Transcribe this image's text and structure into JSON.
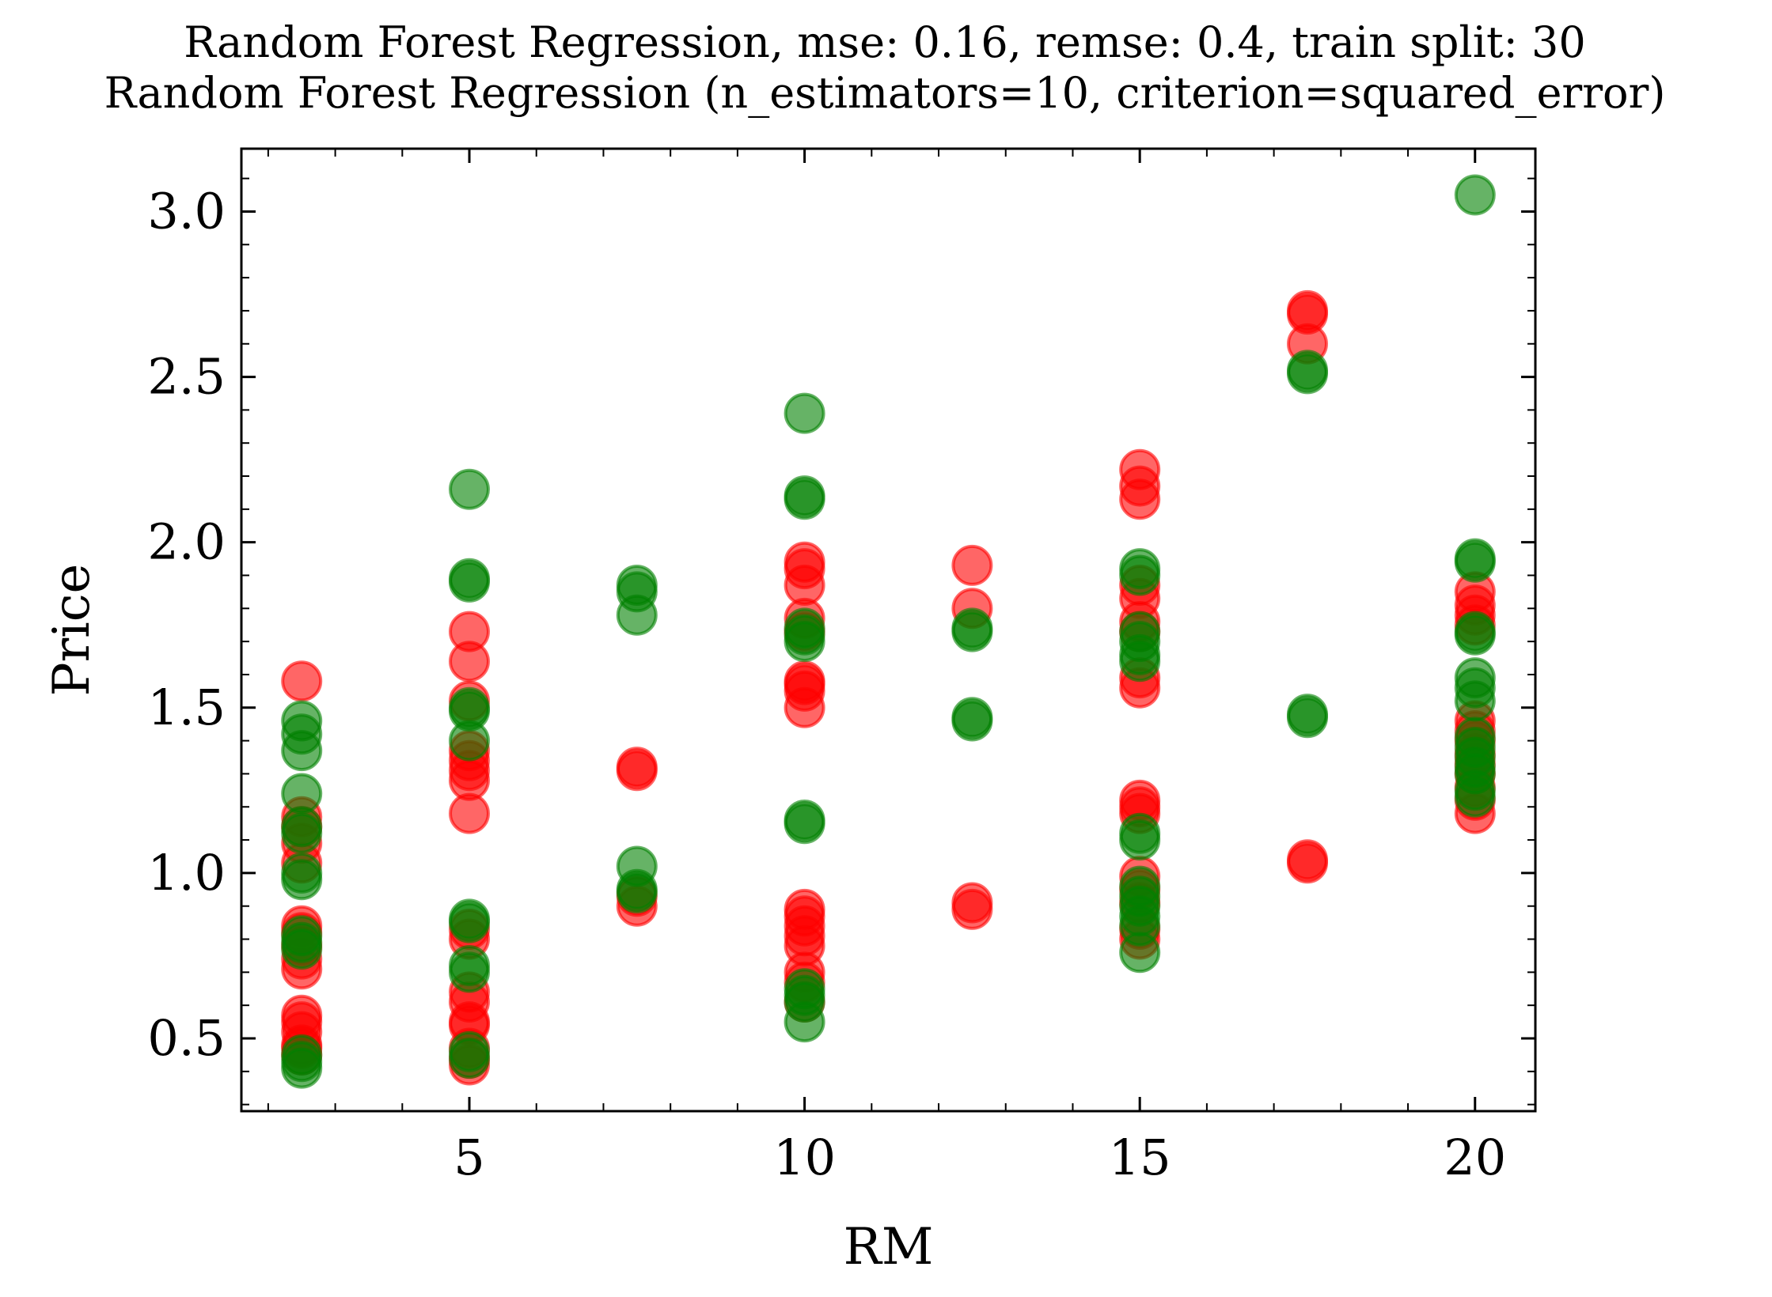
{
  "chart_data": {
    "type": "scatter",
    "title_line1": "Random Forest Regression, mse: 0.16, remse: 0.4, train split: 30",
    "title_line2": "Random Forest Regression (n_estimators=10, criterion=squared_error)",
    "xlabel": "RM",
    "ylabel": "Price",
    "xlim": [
      1.6,
      20.9
    ],
    "ylim": [
      0.28,
      3.19
    ],
    "xticks": [
      5,
      10,
      15,
      20
    ],
    "xtick_labels": [
      "5",
      "10",
      "15",
      "20"
    ],
    "yticks": [
      0.5,
      1.0,
      1.5,
      2.0,
      2.5,
      3.0
    ],
    "ytick_labels": [
      "0.5",
      "1.0",
      "1.5",
      "2.0",
      "2.5",
      "3.0"
    ],
    "grid": false,
    "series": [
      {
        "color": "#ff0000",
        "points": [
          [
            2.5,
            1.58
          ],
          [
            2.5,
            1.17
          ],
          [
            2.5,
            1.14
          ],
          [
            2.5,
            1.09
          ],
          [
            2.5,
            1.03
          ],
          [
            2.5,
            0.84
          ],
          [
            2.5,
            0.82
          ],
          [
            2.5,
            0.78
          ],
          [
            2.5,
            0.74
          ],
          [
            2.5,
            0.71
          ],
          [
            2.5,
            0.57
          ],
          [
            2.5,
            0.55
          ],
          [
            2.5,
            0.52
          ],
          [
            2.5,
            0.48
          ],
          [
            2.5,
            0.47
          ],
          [
            2.5,
            0.45
          ],
          [
            5,
            1.73
          ],
          [
            5,
            1.64
          ],
          [
            5,
            1.52
          ],
          [
            5,
            1.37
          ],
          [
            5,
            1.34
          ],
          [
            5,
            1.31
          ],
          [
            5,
            1.28
          ],
          [
            5,
            1.18
          ],
          [
            5,
            0.83
          ],
          [
            5,
            0.8
          ],
          [
            5,
            0.64
          ],
          [
            5,
            0.61
          ],
          [
            5,
            0.55
          ],
          [
            5,
            0.54
          ],
          [
            5,
            0.47
          ],
          [
            5,
            0.44
          ],
          [
            5,
            0.42
          ],
          [
            7.5,
            1.32
          ],
          [
            7.5,
            1.31
          ],
          [
            7.5,
            0.93
          ],
          [
            7.5,
            0.9
          ],
          [
            10,
            1.94
          ],
          [
            10,
            1.92
          ],
          [
            10,
            1.87
          ],
          [
            10,
            1.77
          ],
          [
            10,
            1.73
          ],
          [
            10,
            1.58
          ],
          [
            10,
            1.57
          ],
          [
            10,
            1.55
          ],
          [
            10,
            1.5
          ],
          [
            10,
            0.89
          ],
          [
            10,
            0.87
          ],
          [
            10,
            0.84
          ],
          [
            10,
            0.81
          ],
          [
            10,
            0.78
          ],
          [
            10,
            0.7
          ],
          [
            10,
            0.67
          ],
          [
            10,
            0.61
          ],
          [
            12.5,
            1.93
          ],
          [
            12.5,
            1.8
          ],
          [
            12.5,
            0.91
          ],
          [
            12.5,
            0.89
          ],
          [
            15,
            2.22
          ],
          [
            15,
            2.17
          ],
          [
            15,
            2.13
          ],
          [
            15,
            1.87
          ],
          [
            15,
            1.83
          ],
          [
            15,
            1.76
          ],
          [
            15,
            1.73
          ],
          [
            15,
            1.59
          ],
          [
            15,
            1.56
          ],
          [
            15,
            1.22
          ],
          [
            15,
            1.2
          ],
          [
            15,
            1.18
          ],
          [
            15,
            0.99
          ],
          [
            15,
            0.95
          ],
          [
            15,
            0.91
          ],
          [
            15,
            0.83
          ],
          [
            15,
            0.8
          ],
          [
            17.5,
            2.7
          ],
          [
            17.5,
            2.69
          ],
          [
            17.5,
            2.6
          ],
          [
            17.5,
            1.04
          ],
          [
            17.5,
            1.03
          ],
          [
            20,
            1.85
          ],
          [
            20,
            1.81
          ],
          [
            20,
            1.78
          ],
          [
            20,
            1.75
          ],
          [
            20,
            1.46
          ],
          [
            20,
            1.43
          ],
          [
            20,
            1.4
          ],
          [
            20,
            1.36
          ],
          [
            20,
            1.33
          ],
          [
            20,
            1.3
          ],
          [
            20,
            1.26
          ],
          [
            20,
            1.22
          ],
          [
            20,
            1.18
          ]
        ]
      },
      {
        "color": "#008000",
        "points": [
          [
            2.5,
            1.46
          ],
          [
            2.5,
            1.42
          ],
          [
            2.5,
            1.37
          ],
          [
            2.5,
            1.24
          ],
          [
            2.5,
            1.14
          ],
          [
            2.5,
            1.12
          ],
          [
            2.5,
            1.0
          ],
          [
            2.5,
            0.98
          ],
          [
            2.5,
            0.81
          ],
          [
            2.5,
            0.79
          ],
          [
            2.5,
            0.77
          ],
          [
            2.5,
            0.45
          ],
          [
            2.5,
            0.43
          ],
          [
            2.5,
            0.41
          ],
          [
            5,
            2.16
          ],
          [
            5,
            1.89
          ],
          [
            5,
            1.88
          ],
          [
            5,
            1.5
          ],
          [
            5,
            1.49
          ],
          [
            5,
            1.4
          ],
          [
            5,
            0.86
          ],
          [
            5,
            0.85
          ],
          [
            5,
            0.72
          ],
          [
            5,
            0.7
          ],
          [
            5,
            0.46
          ],
          [
            5,
            0.44
          ],
          [
            7.5,
            1.87
          ],
          [
            7.5,
            1.85
          ],
          [
            7.5,
            1.78
          ],
          [
            7.5,
            1.02
          ],
          [
            7.5,
            0.95
          ],
          [
            7.5,
            0.94
          ],
          [
            10,
            2.39
          ],
          [
            10,
            2.14
          ],
          [
            10,
            2.13
          ],
          [
            10,
            1.74
          ],
          [
            10,
            1.72
          ],
          [
            10,
            1.7
          ],
          [
            10,
            1.16
          ],
          [
            10,
            1.15
          ],
          [
            10,
            0.65
          ],
          [
            10,
            0.63
          ],
          [
            10,
            0.61
          ],
          [
            10,
            0.55
          ],
          [
            12.5,
            1.74
          ],
          [
            12.5,
            1.73
          ],
          [
            12.5,
            1.47
          ],
          [
            12.5,
            1.46
          ],
          [
            15,
            1.92
          ],
          [
            15,
            1.9
          ],
          [
            15,
            1.73
          ],
          [
            15,
            1.7
          ],
          [
            15,
            1.66
          ],
          [
            15,
            1.64
          ],
          [
            15,
            1.12
          ],
          [
            15,
            1.1
          ],
          [
            15,
            0.96
          ],
          [
            15,
            0.93
          ],
          [
            15,
            0.9
          ],
          [
            15,
            0.87
          ],
          [
            15,
            0.84
          ],
          [
            15,
            0.76
          ],
          [
            17.5,
            2.52
          ],
          [
            17.5,
            2.51
          ],
          [
            17.5,
            1.48
          ],
          [
            17.5,
            1.47
          ],
          [
            20,
            3.05
          ],
          [
            20,
            1.95
          ],
          [
            20,
            1.94
          ],
          [
            20,
            1.73
          ],
          [
            20,
            1.72
          ],
          [
            20,
            1.59
          ],
          [
            20,
            1.56
          ],
          [
            20,
            1.52
          ],
          [
            20,
            1.41
          ],
          [
            20,
            1.38
          ],
          [
            20,
            1.35
          ],
          [
            20,
            1.32
          ],
          [
            20,
            1.3
          ],
          [
            20,
            1.25
          ],
          [
            20,
            1.23
          ]
        ]
      }
    ]
  }
}
